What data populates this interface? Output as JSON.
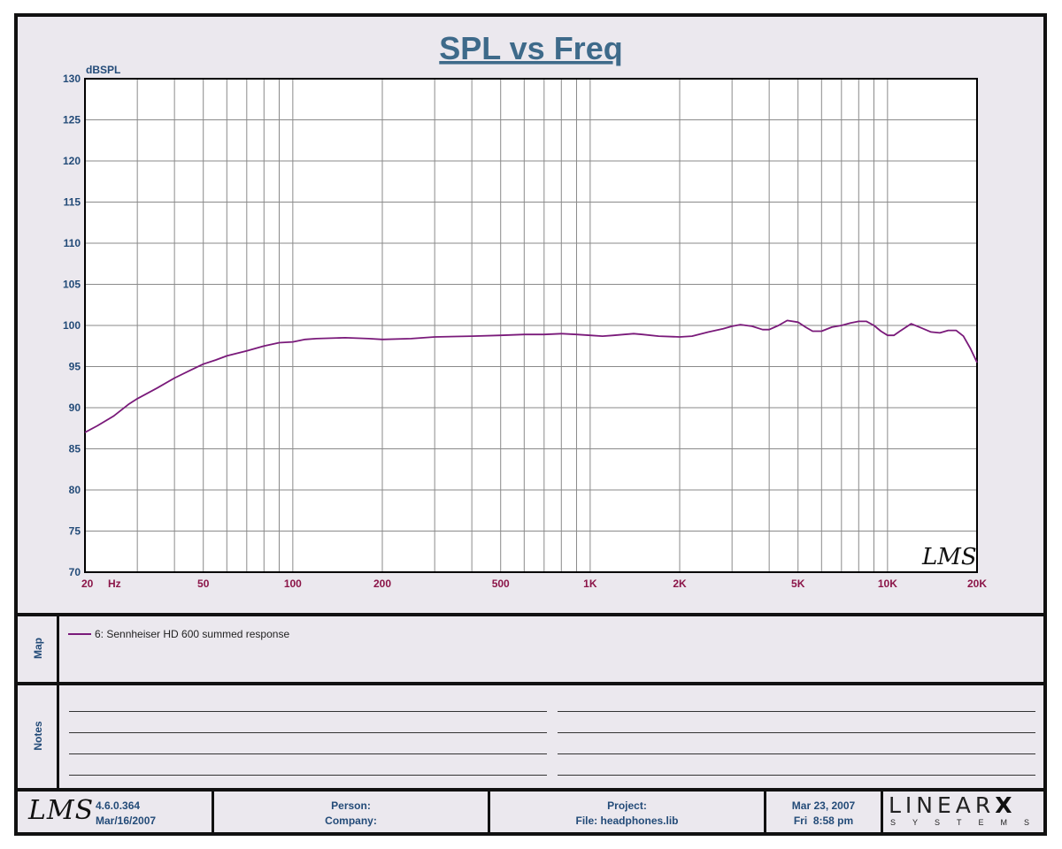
{
  "chart_data": {
    "type": "line",
    "title": "SPL vs Freq",
    "ylabel": "dBSPL",
    "xunit": "Hz",
    "xscale": "log",
    "xlim": [
      20,
      20000
    ],
    "ylim": [
      70,
      130
    ],
    "grid": true,
    "yticks": [
      "130",
      "125",
      "120",
      "115",
      "110",
      "105",
      "100",
      "95",
      "90",
      "85",
      "80",
      "75",
      "70"
    ],
    "xticks": [
      {
        "value": 20,
        "label": "20"
      },
      {
        "value": 50,
        "label": "50"
      },
      {
        "value": 100,
        "label": "100"
      },
      {
        "value": 200,
        "label": "200"
      },
      {
        "value": 500,
        "label": "500"
      },
      {
        "value": 1000,
        "label": "1K"
      },
      {
        "value": 2000,
        "label": "2K"
      },
      {
        "value": 5000,
        "label": "5K"
      },
      {
        "value": 10000,
        "label": "10K"
      },
      {
        "value": 20000,
        "label": "20K"
      }
    ],
    "series": [
      {
        "name": "6: Sennheiser HD 600 summed response",
        "color": "#7a1a7a",
        "x": [
          20,
          22,
          25,
          28,
          30,
          35,
          40,
          45,
          50,
          55,
          60,
          70,
          80,
          90,
          100,
          110,
          120,
          150,
          180,
          200,
          250,
          300,
          400,
          500,
          600,
          700,
          800,
          900,
          1000,
          1100,
          1200,
          1300,
          1400,
          1500,
          1700,
          2000,
          2200,
          2500,
          2800,
          3000,
          3200,
          3500,
          3800,
          4000,
          4300,
          4600,
          5000,
          5300,
          5600,
          6000,
          6500,
          7000,
          7500,
          8000,
          8500,
          9000,
          9500,
          10000,
          10500,
          11000,
          12000,
          13000,
          14000,
          15000,
          16000,
          17000,
          18000,
          19000,
          20000
        ],
        "y": [
          87.0,
          87.8,
          89.0,
          90.4,
          91.1,
          92.4,
          93.6,
          94.5,
          95.3,
          95.8,
          96.3,
          96.9,
          97.5,
          97.9,
          98.0,
          98.3,
          98.4,
          98.5,
          98.4,
          98.3,
          98.4,
          98.6,
          98.7,
          98.8,
          98.9,
          98.9,
          99.0,
          98.9,
          98.8,
          98.7,
          98.8,
          98.9,
          99.0,
          98.9,
          98.7,
          98.6,
          98.7,
          99.2,
          99.6,
          99.9,
          100.1,
          99.9,
          99.5,
          99.5,
          100.0,
          100.6,
          100.4,
          99.8,
          99.3,
          99.3,
          99.8,
          100.0,
          100.3,
          100.5,
          100.5,
          100.0,
          99.3,
          98.8,
          98.8,
          99.3,
          100.2,
          99.7,
          99.2,
          99.1,
          99.4,
          99.4,
          98.7,
          97.2,
          95.5
        ]
      }
    ]
  },
  "watermark": "LMS",
  "map": {
    "label": "Map"
  },
  "notes": {
    "label": "Notes"
  },
  "footer": {
    "logo": "LMS",
    "version": "4.6.0.364",
    "build_date": "Mar/16/2007",
    "person_label": "Person:",
    "company_label": "Company:",
    "project_label": "Project:",
    "file_label": "File: headphones.lib",
    "date": "Mar 23, 2007",
    "time": "Fri  8:58 pm",
    "brand_top": "LINEAR",
    "brand_x": "X",
    "brand_bottom": "SYSTEMS"
  },
  "colors": {
    "axis_ticks_y": "#234b78",
    "axis_ticks_x": "#8b1548",
    "trace": "#7a1a7a",
    "panel_bg": "#ebe8ee"
  }
}
